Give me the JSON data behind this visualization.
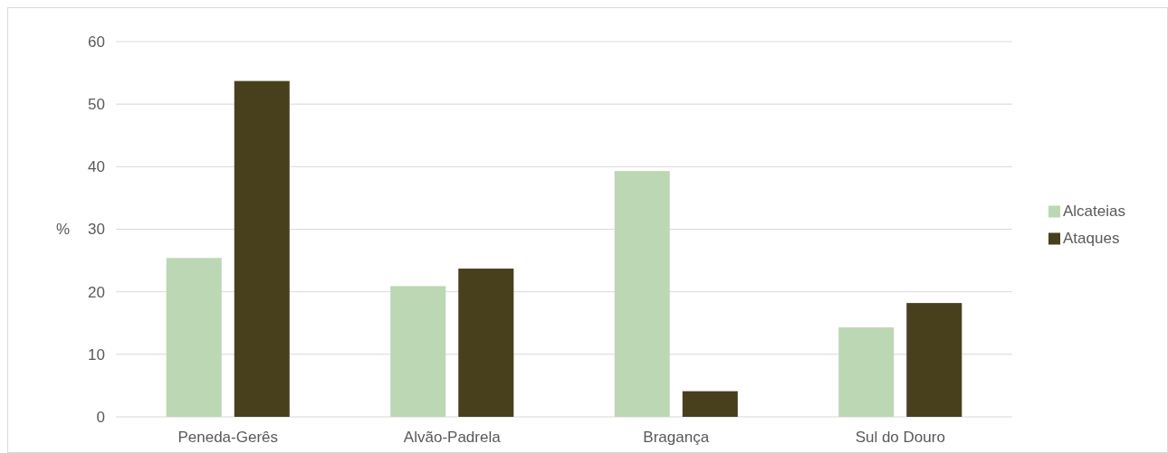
{
  "chart_data": {
    "type": "bar",
    "ylabel": "%",
    "categories": [
      "Peneda-Gerês",
      "Alvão-Padrela",
      "Bragança",
      "Sul do Douro"
    ],
    "series": [
      {
        "name": "Alcateias",
        "color": "#bcd7b3",
        "values": [
          25.4,
          20.9,
          39.3,
          14.3
        ]
      },
      {
        "name": "Ataques",
        "color": "#48401c",
        "values": [
          53.7,
          23.7,
          4.1,
          18.2
        ]
      }
    ],
    "ylim": [
      0,
      60
    ],
    "yticks": [
      0,
      10,
      20,
      30,
      40,
      50,
      60
    ],
    "grid": "y",
    "legend": "right"
  }
}
